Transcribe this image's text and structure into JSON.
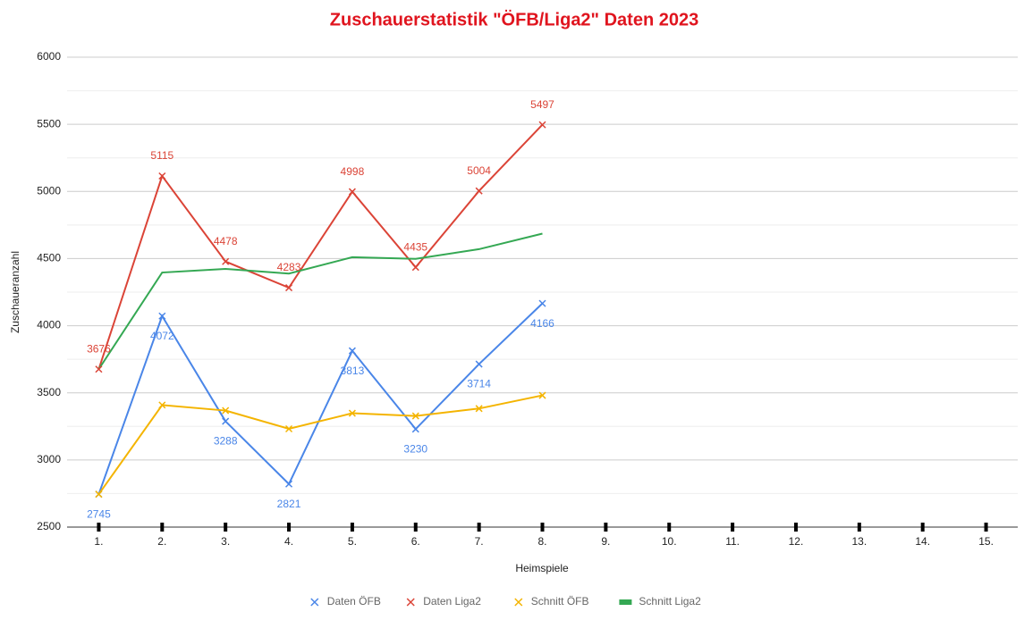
{
  "chart_data": {
    "type": "line",
    "title": "Zuschauerstatistik \"ÖFB/Liga2\" Daten 2023",
    "x_label": "Heimspiele",
    "y_label": "Zuschaueranzahl",
    "categories": [
      "1.",
      "2.",
      "3.",
      "4.",
      "5.",
      "6.",
      "7.",
      "8.",
      "9.",
      "10.",
      "11.",
      "12.",
      "13.",
      "14.",
      "15."
    ],
    "ylim": [
      2500,
      6000
    ],
    "yticks": [
      2500,
      3000,
      3500,
      4000,
      4500,
      5000,
      5500,
      6000
    ],
    "grid": true,
    "minor_grid": true,
    "legend": "bottom",
    "series": [
      {
        "name": "Daten ÖFB",
        "color": "#4a86e8",
        "marker": "x",
        "data_labels": "below",
        "values": [
          2745,
          4072,
          3288,
          2821,
          3813,
          3230,
          3714,
          4166,
          null,
          null,
          null,
          null,
          null,
          null,
          null
        ]
      },
      {
        "name": "Daten Liga2",
        "color": "#db4437",
        "marker": "x",
        "data_labels": "above",
        "values": [
          3676,
          5115,
          4478,
          4283,
          4998,
          4435,
          5004,
          5497,
          null,
          null,
          null,
          null,
          null,
          null,
          null
        ]
      },
      {
        "name": "Schnitt ÖFB",
        "color": "#f4b400",
        "marker": "x",
        "values": [
          2745,
          3409,
          3368,
          3232,
          3348,
          3328,
          3383,
          3481,
          null,
          null,
          null,
          null,
          null,
          null,
          null
        ]
      },
      {
        "name": "Schnitt Liga2",
        "color": "#34a853",
        "values": [
          3676,
          4396,
          4423,
          4388,
          4510,
          4498,
          4570,
          4686,
          null,
          null,
          null,
          null,
          null,
          null,
          null
        ]
      }
    ]
  }
}
